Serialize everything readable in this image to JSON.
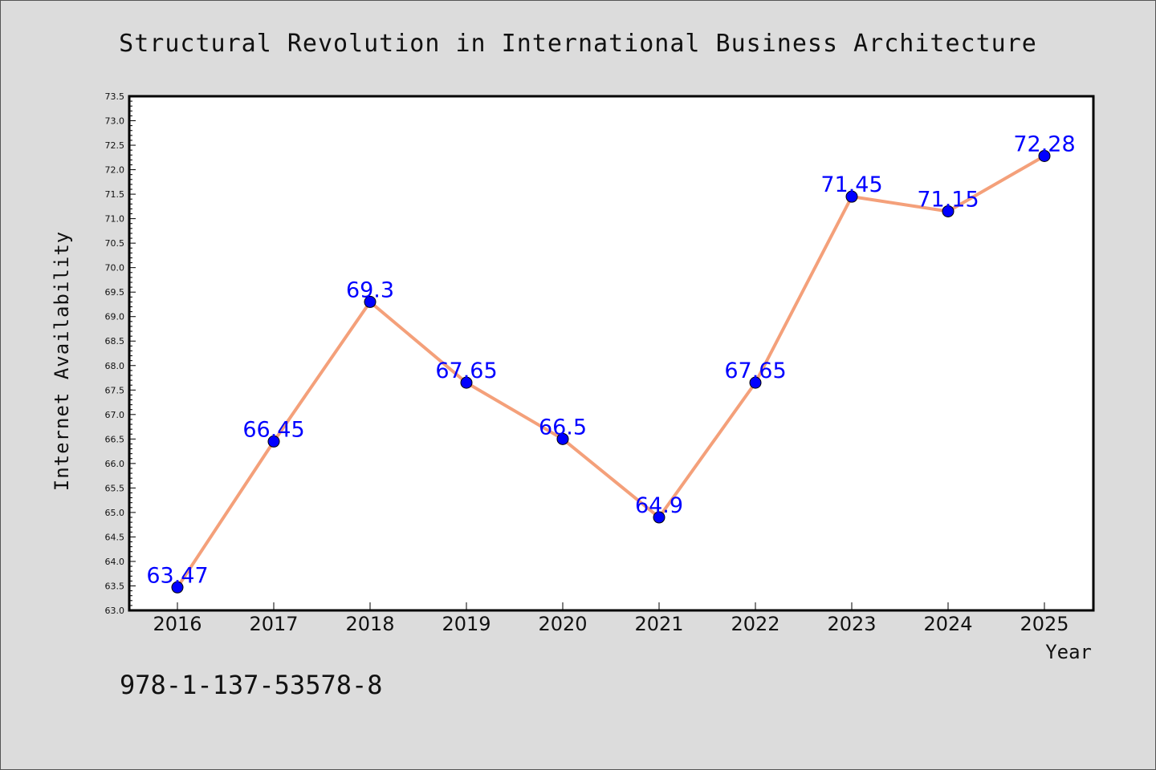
{
  "chart_data": {
    "type": "line",
    "title": "Structural Revolution in International Business Architecture",
    "xlabel": "Year",
    "ylabel": "Internet Availability",
    "categories": [
      "2016",
      "2017",
      "2018",
      "2019",
      "2020",
      "2021",
      "2022",
      "2023",
      "2024",
      "2025"
    ],
    "values": [
      63.47,
      66.45,
      69.3,
      67.65,
      66.5,
      64.9,
      67.65,
      71.45,
      71.15,
      72.28
    ],
    "data_labels": [
      "63.47",
      "66.45",
      "69.3",
      "67.65",
      "66.5",
      "64.9",
      "67.65",
      "71.45",
      "71.15",
      "72.28"
    ],
    "ylim": [
      63.0,
      73.5
    ],
    "yticks": [
      "63.0",
      "63.5",
      "64.0",
      "64.5",
      "65.0",
      "65.5",
      "66.0",
      "66.5",
      "67.0",
      "67.5",
      "68.0",
      "68.5",
      "69.0",
      "69.5",
      "70.0",
      "70.5",
      "71.0",
      "71.5",
      "72.0",
      "72.5",
      "73.0",
      "73.5"
    ],
    "grid": false,
    "legend": "none",
    "colors": {
      "line": "#f4a07a",
      "marker": "#0000ff",
      "marker_edge": "#000000",
      "label": "#0000ff",
      "background": "#dcdcdc",
      "plot_background": "#ffffff"
    }
  },
  "footer": {
    "isbn": "978-1-137-53578-8"
  }
}
